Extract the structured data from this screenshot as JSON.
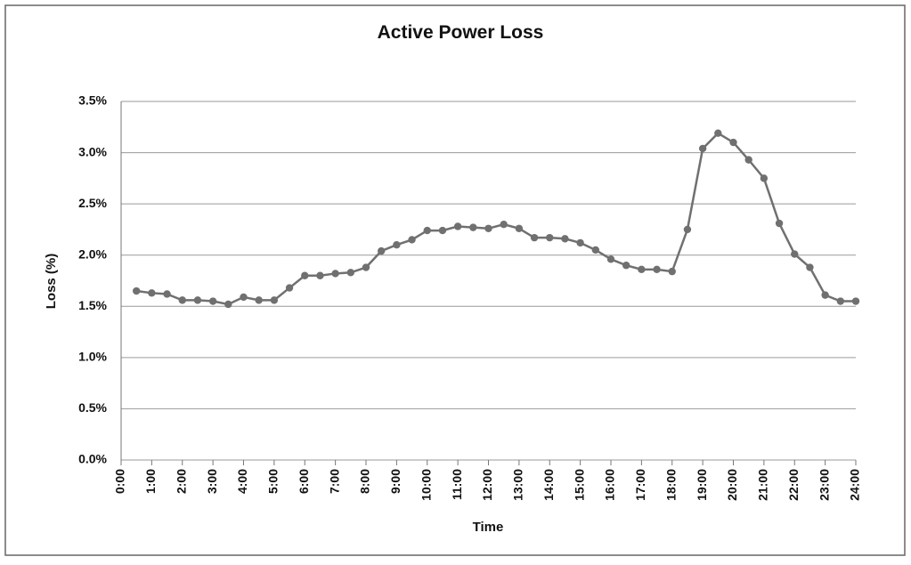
{
  "chart_data": {
    "type": "line",
    "title": "Active Power Loss",
    "x_label": "Time",
    "y_label": "Loss (%)",
    "x": [
      0.5,
      1,
      1.5,
      2,
      2.5,
      3,
      3.5,
      4,
      4.5,
      5,
      5.5,
      6,
      6.5,
      7,
      7.5,
      8,
      8.5,
      9,
      9.5,
      10,
      10.5,
      11,
      11.5,
      12,
      12.5,
      13,
      13.5,
      14,
      14.5,
      15,
      15.5,
      16,
      16.5,
      17,
      17.5,
      18,
      18.5,
      19,
      19.5,
      20,
      20.5,
      21,
      21.5,
      22,
      22.5,
      23,
      23.5,
      24
    ],
    "series": [
      {
        "name": "Loss",
        "color": "#707070",
        "values": [
          1.65,
          1.63,
          1.62,
          1.56,
          1.56,
          1.55,
          1.52,
          1.59,
          1.56,
          1.56,
          1.68,
          1.8,
          1.8,
          1.82,
          1.83,
          1.88,
          2.04,
          2.1,
          2.15,
          2.24,
          2.24,
          2.28,
          2.27,
          2.26,
          2.3,
          2.26,
          2.17,
          2.17,
          2.16,
          2.12,
          2.05,
          1.96,
          1.9,
          1.86,
          1.86,
          1.84,
          2.25,
          3.04,
          3.19,
          3.1,
          2.93,
          2.75,
          2.31,
          2.01,
          1.88,
          1.61,
          1.55,
          1.55
        ]
      }
    ],
    "xlim": [
      0,
      24
    ],
    "xticks": [
      {
        "value": 0,
        "label": "0:00"
      },
      {
        "value": 1,
        "label": "1:00"
      },
      {
        "value": 2,
        "label": "2:00"
      },
      {
        "value": 3,
        "label": "3:00"
      },
      {
        "value": 4,
        "label": "4:00"
      },
      {
        "value": 5,
        "label": "5:00"
      },
      {
        "value": 6,
        "label": "6:00"
      },
      {
        "value": 7,
        "label": "7:00"
      },
      {
        "value": 8,
        "label": "8:00"
      },
      {
        "value": 9,
        "label": "9:00"
      },
      {
        "value": 10,
        "label": "10:00"
      },
      {
        "value": 11,
        "label": "11:00"
      },
      {
        "value": 12,
        "label": "12:00"
      },
      {
        "value": 13,
        "label": "13:00"
      },
      {
        "value": 14,
        "label": "14:00"
      },
      {
        "value": 15,
        "label": "15:00"
      },
      {
        "value": 16,
        "label": "16:00"
      },
      {
        "value": 17,
        "label": "17:00"
      },
      {
        "value": 18,
        "label": "18:00"
      },
      {
        "value": 19,
        "label": "19:00"
      },
      {
        "value": 20,
        "label": "20:00"
      },
      {
        "value": 21,
        "label": "21:00"
      },
      {
        "value": 22,
        "label": "22:00"
      },
      {
        "value": 23,
        "label": "23:00"
      },
      {
        "value": 24,
        "label": "24:00"
      }
    ],
    "ylim": [
      0,
      3.5
    ],
    "yticks": [
      {
        "value": 0,
        "label": "0.0%"
      },
      {
        "value": 0.5,
        "label": "0.5%"
      },
      {
        "value": 1,
        "label": "1.0%"
      },
      {
        "value": 1.5,
        "label": "1.5%"
      },
      {
        "value": 2,
        "label": "2.0%"
      },
      {
        "value": 2.5,
        "label": "2.5%"
      },
      {
        "value": 3,
        "label": "3.0%"
      },
      {
        "value": 3.5,
        "label": "3.5%"
      }
    ],
    "grid": true
  }
}
